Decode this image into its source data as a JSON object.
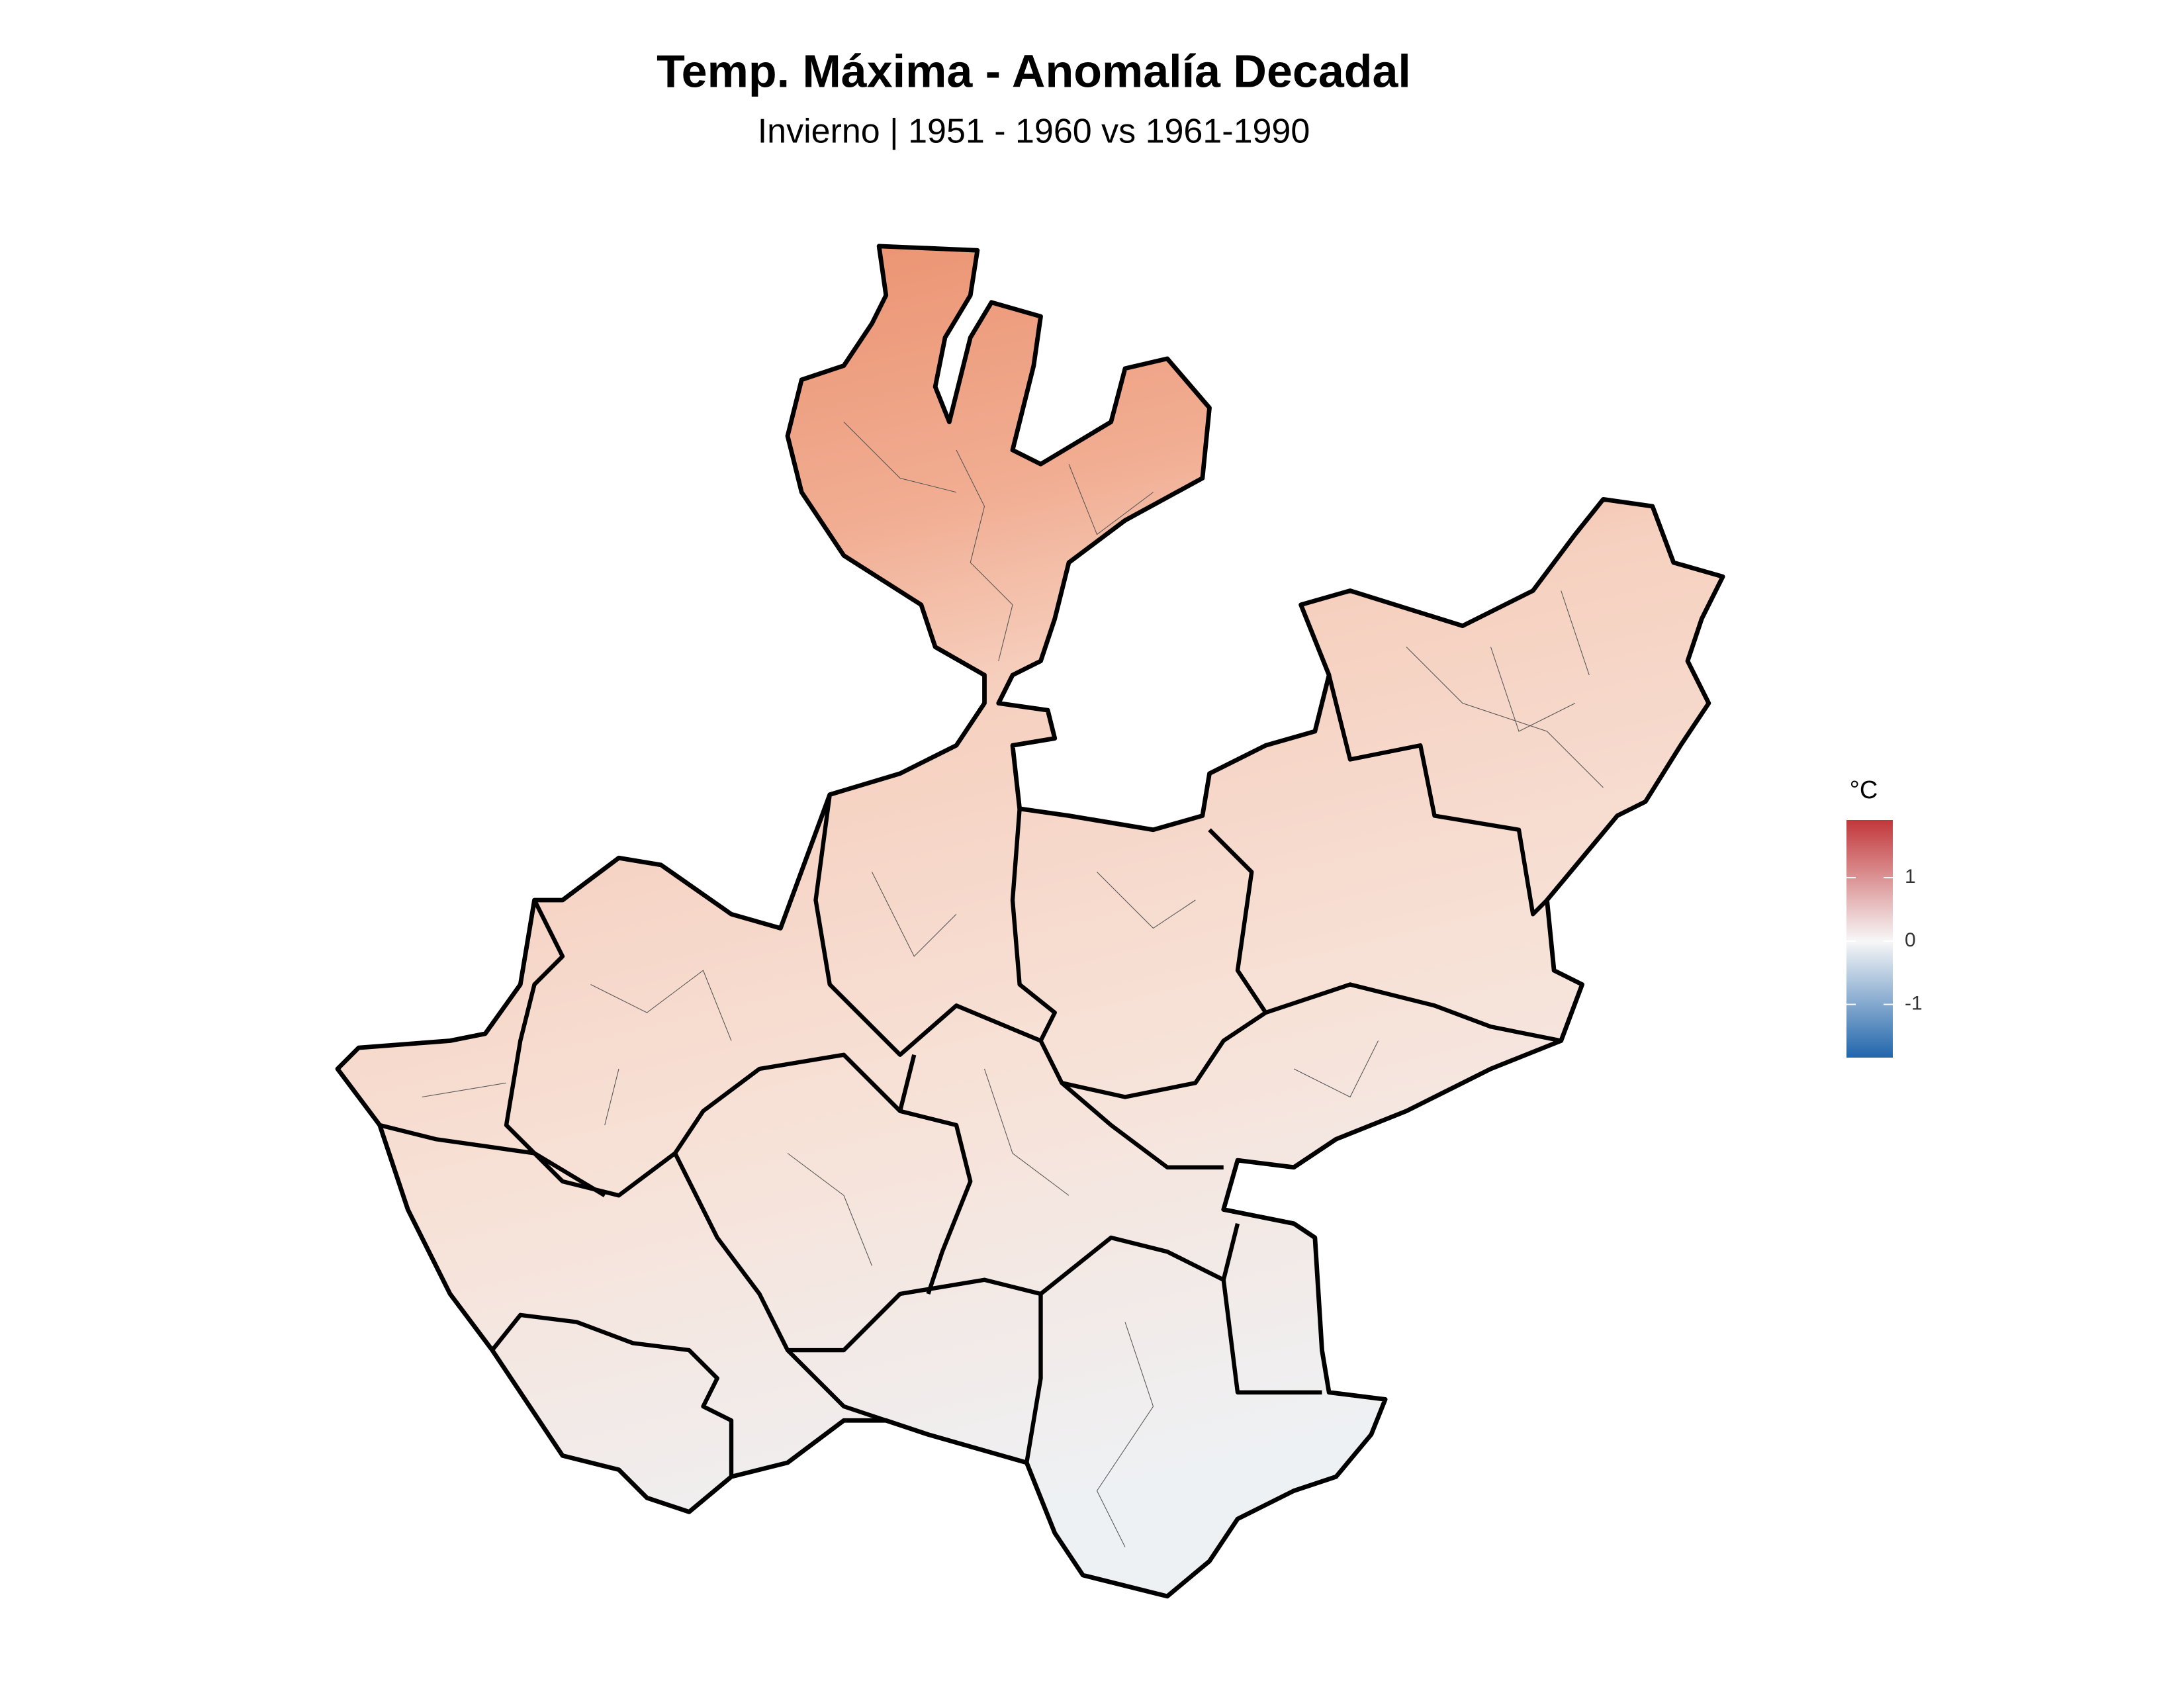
{
  "header": {
    "title": "Temp. Máxima - Anomalía Decadal",
    "subtitle": "Invierno | 1951 - 1960 vs 1961-1990"
  },
  "legend": {
    "title": "°C",
    "ticks": [
      1,
      0,
      -1
    ],
    "color_stops": [
      {
        "value": -1.84,
        "color": "#2166ac"
      },
      {
        "value": 0,
        "color": "#f7f7f7"
      },
      {
        "value": 1.91,
        "color": "#c2373a"
      }
    ]
  }
}
